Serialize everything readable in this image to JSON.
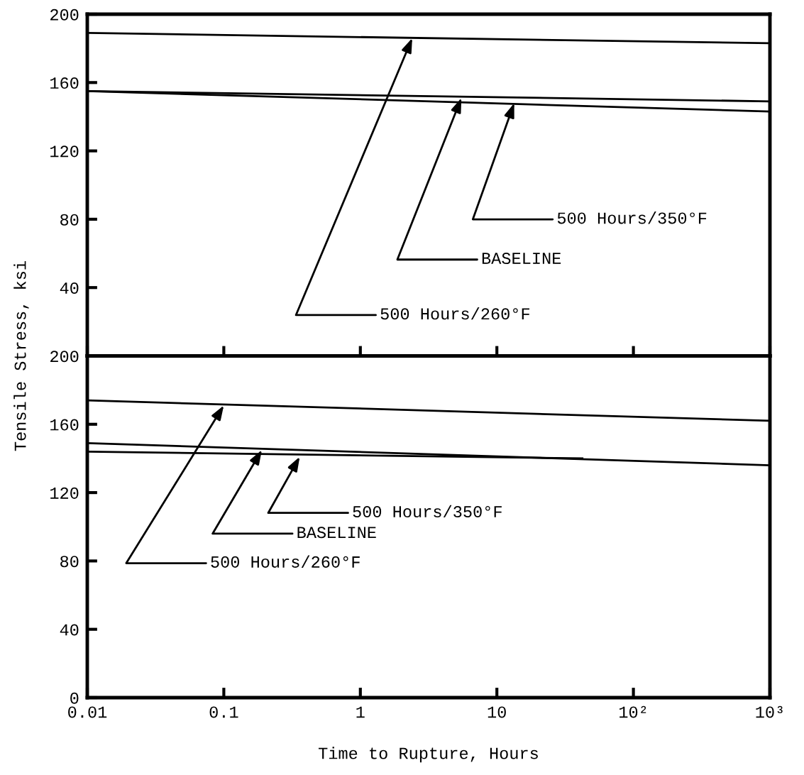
{
  "chart_data": [
    {
      "type": "line",
      "log": "x",
      "xlim": [
        0.01,
        1000
      ],
      "xticks": [
        {
          "value": 0.01,
          "label": null
        },
        {
          "value": 0.1,
          "label": null
        },
        {
          "value": 1,
          "label": null
        },
        {
          "value": 10,
          "label": null
        },
        {
          "value": 100,
          "label": null
        },
        {
          "value": 1000,
          "label": null
        }
      ],
      "ylim": [
        0,
        200
      ],
      "yticks": [
        40,
        80,
        120,
        160,
        200
      ],
      "tick_labels": "y",
      "ylabel": "Tensile Stress, ksi",
      "grid": false,
      "legend": false,
      "series": [
        {
          "color": "#000000",
          "x": [
            0.01,
            1000
          ],
          "values": [
            189,
            183
          ]
        },
        {
          "color": "#000000",
          "x": [
            0.01,
            1000
          ],
          "values": [
            155,
            149
          ]
        },
        {
          "color": "#000000",
          "x": [
            0.01,
            1000
          ],
          "values": [
            155,
            143
          ]
        }
      ],
      "annotations": [
        {
          "text": "500 Hours/260°F",
          "x": 2.4,
          "y": 186
        },
        {
          "text": "BASELINE",
          "x": 5.5,
          "y": 151
        },
        {
          "text": "500 Hours/350°F",
          "x": 13.4,
          "y": 148
        }
      ]
    },
    {
      "type": "line",
      "log": "x",
      "xlim": [
        0.01,
        1000
      ],
      "xticks": [
        {
          "value": 0.01,
          "label": "0.01"
        },
        0.1,
        1,
        10,
        {
          "value": 100,
          "label": "10²"
        },
        {
          "value": 1000,
          "label": "10³"
        }
      ],
      "ylim": [
        0,
        200
      ],
      "yticks": [
        0,
        40,
        80,
        120,
        160,
        200
      ],
      "xlabel": "Time to Rupture, Hours",
      "grid": false,
      "legend": false,
      "series": [
        {
          "color": "#000000",
          "x": [
            0.01,
            1000
          ],
          "values": [
            174,
            162
          ]
        },
        {
          "color": "#000000",
          "x": [
            0.01,
            1000
          ],
          "values": [
            149,
            136
          ]
        },
        {
          "color": "#000000",
          "x": [
            0.01,
            43
          ],
          "values": [
            144,
            140
          ]
        }
      ],
      "annotations": [
        {
          "text": "500 Hours/260°F",
          "x": 0.1,
          "y": 171
        },
        {
          "text": "BASELINE",
          "x": 0.19,
          "y": 145
        },
        {
          "text": "500 Hours/350°F",
          "x": 0.36,
          "y": 141
        }
      ]
    }
  ]
}
